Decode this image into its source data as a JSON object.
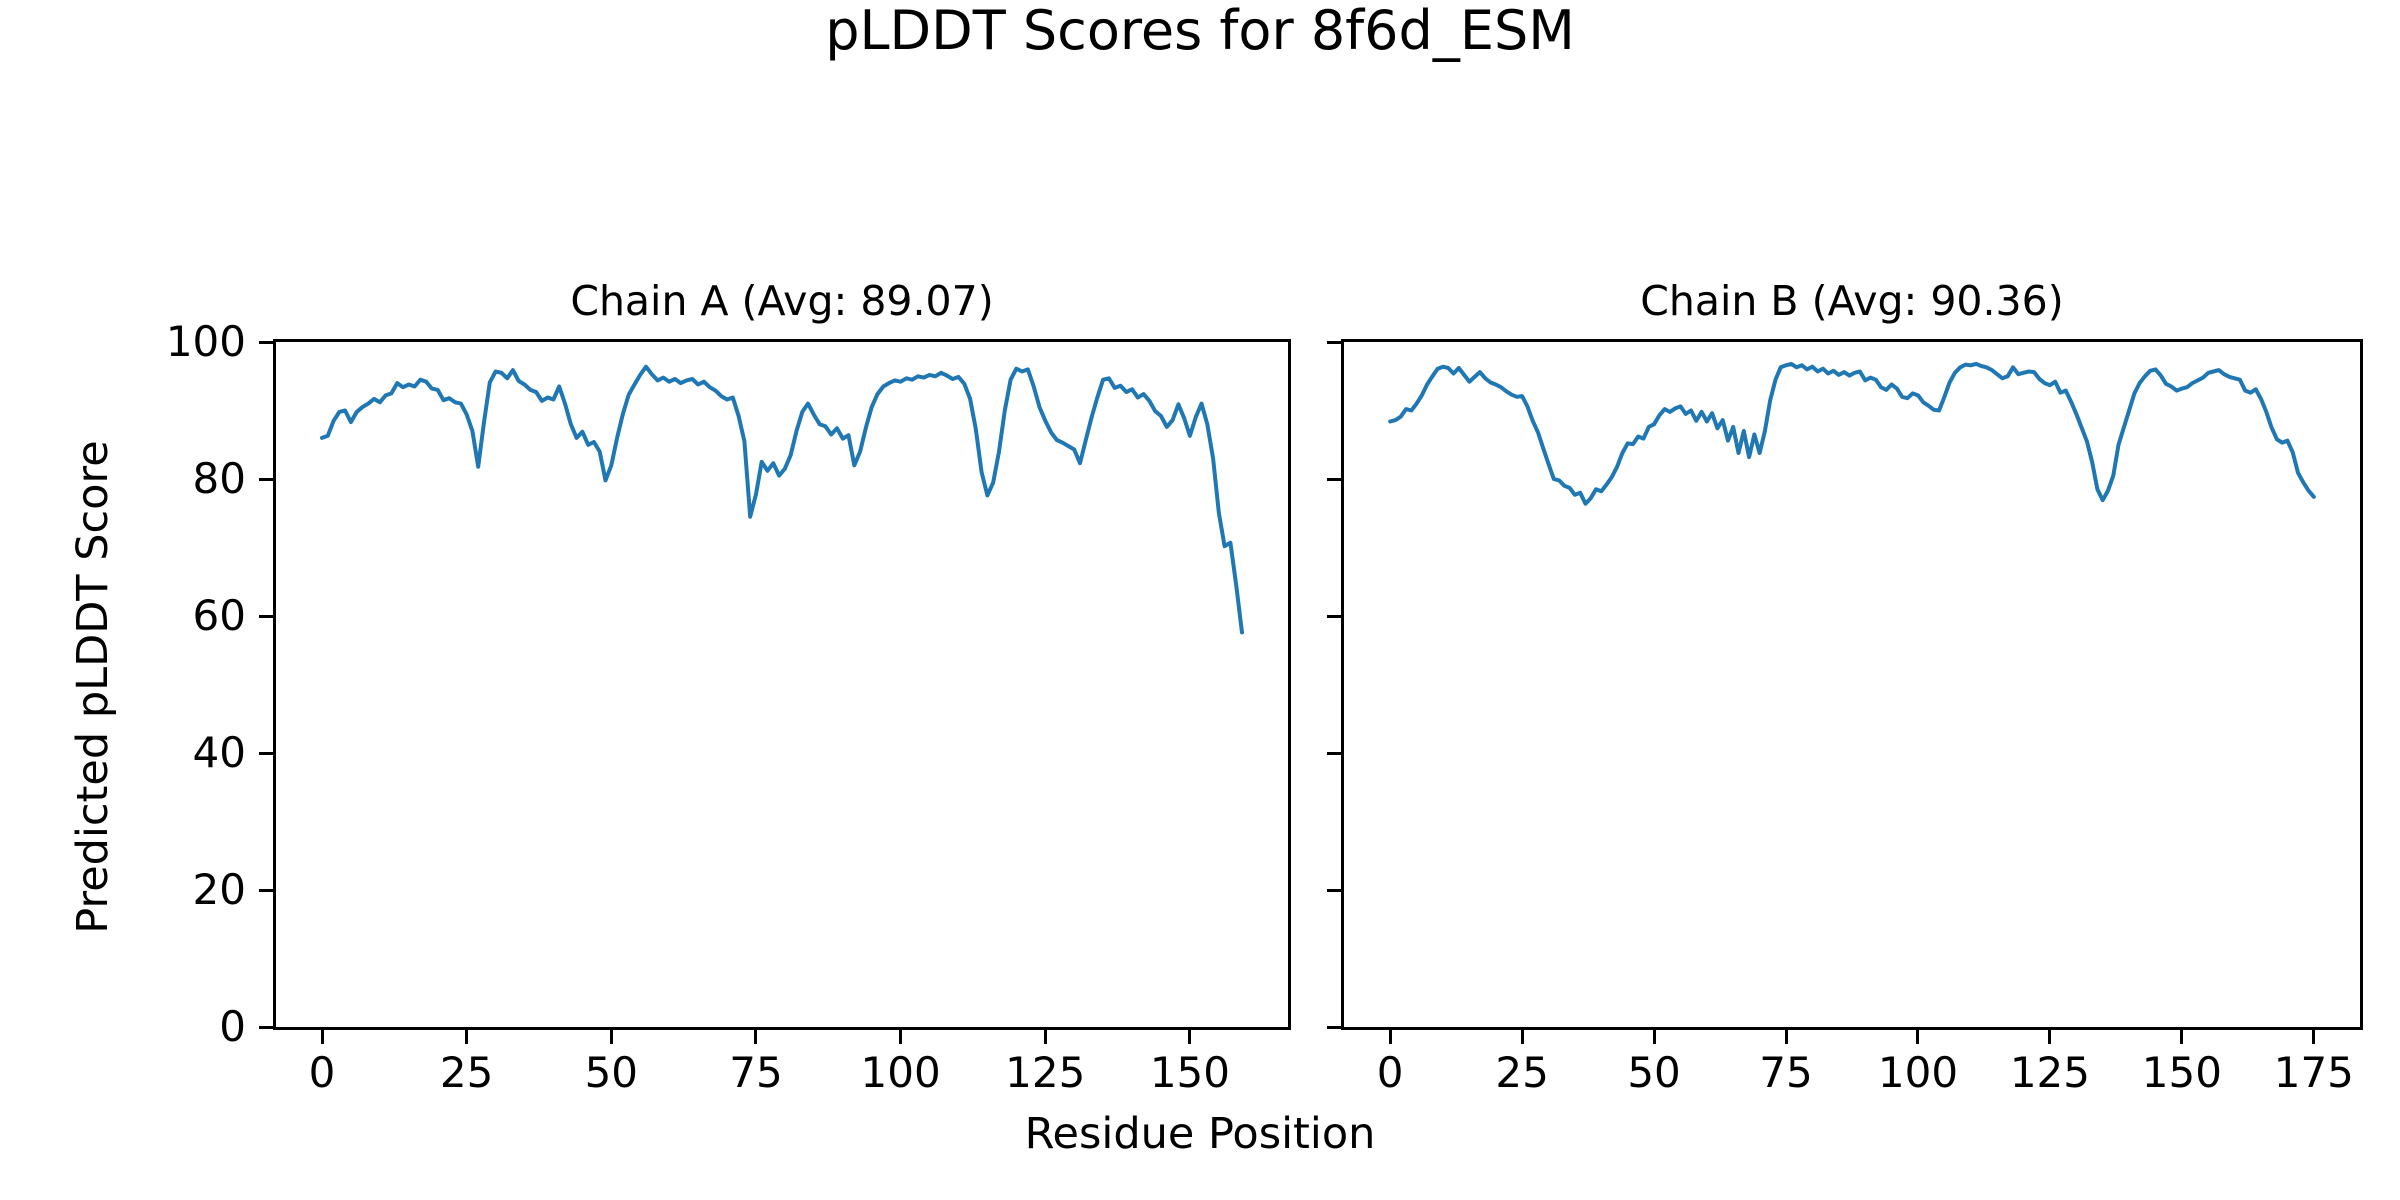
{
  "figure": {
    "title": "pLDDT Scores for 8f6d_ESM",
    "xlabel": "Residue Position",
    "ylabel": "Predicted pLDDT Score",
    "background": "#ffffff",
    "text_color": "#000000",
    "line_color": "#1f77b4"
  },
  "chart_data": [
    {
      "type": "line",
      "title": "Chain A (Avg: 89.07)",
      "series_name": "Chain A pLDDT",
      "avg_plddt": 89.07,
      "xlabel": "Residue Position",
      "ylabel": "Predicted pLDDT Score",
      "x_start": 0,
      "x_step": 1,
      "xlim": [
        -7.95,
        166.95
      ],
      "ylim": [
        0,
        100
      ],
      "xticks": [
        0,
        25,
        50,
        75,
        100,
        125,
        150
      ],
      "yticks": [
        0,
        20,
        40,
        60,
        80,
        100
      ],
      "y_tick_labels_visible": true,
      "grid": false,
      "legend": "none",
      "values": [
        86.0,
        86.3,
        88.5,
        89.8,
        90.0,
        88.3,
        89.8,
        90.5,
        91.0,
        91.7,
        91.2,
        92.2,
        92.5,
        94.0,
        93.4,
        93.8,
        93.5,
        94.5,
        94.2,
        93.2,
        93.0,
        91.5,
        91.8,
        91.2,
        91.0,
        89.4,
        87.0,
        81.8,
        88.3,
        94.1,
        95.7,
        95.5,
        94.7,
        95.9,
        94.3,
        93.8,
        93.0,
        92.7,
        91.4,
        91.9,
        91.6,
        93.5,
        91.0,
        88.0,
        86.0,
        86.9,
        85.0,
        85.4,
        84.0,
        79.8,
        82.0,
        86.0,
        89.5,
        92.3,
        93.8,
        95.2,
        96.4,
        95.3,
        94.4,
        94.8,
        94.2,
        94.6,
        94.0,
        94.4,
        94.6,
        93.8,
        94.2,
        93.4,
        92.9,
        92.1,
        91.6,
        91.9,
        89.2,
        85.5,
        74.5,
        77.8,
        82.5,
        81.2,
        82.3,
        80.5,
        81.5,
        83.5,
        87.0,
        89.8,
        91.0,
        89.4,
        88.0,
        87.7,
        86.5,
        87.4,
        85.9,
        86.4,
        82.0,
        84.0,
        87.5,
        90.5,
        92.4,
        93.5,
        94.0,
        94.4,
        94.2,
        94.7,
        94.5,
        95.0,
        94.8,
        95.2,
        95.0,
        95.5,
        95.1,
        94.6,
        94.9,
        93.9,
        91.7,
        87.3,
        81.0,
        77.6,
        79.5,
        84.0,
        90.0,
        94.5,
        96.1,
        95.7,
        96.0,
        93.5,
        90.5,
        88.5,
        86.8,
        85.7,
        85.3,
        84.8,
        84.3,
        82.3,
        85.7,
        89.0,
        91.9,
        94.5,
        94.7,
        93.3,
        93.6,
        92.7,
        93.1,
        91.9,
        92.4,
        91.4,
        89.9,
        89.2,
        87.6,
        88.6,
        90.9,
        88.9,
        86.3,
        89.0,
        91.0,
        88.0,
        83.0,
        75.0,
        70.2,
        70.7,
        64.5,
        57.6
      ]
    },
    {
      "type": "line",
      "title": "Chain B (Avg: 90.36)",
      "series_name": "Chain B pLDDT",
      "avg_plddt": 90.36,
      "xlabel": "Residue Position",
      "ylabel": "Predicted pLDDT Score",
      "x_start": 0,
      "x_step": 1,
      "xlim": [
        -8.75,
        183.75
      ],
      "ylim": [
        0,
        100
      ],
      "xticks": [
        0,
        25,
        50,
        75,
        100,
        125,
        150,
        175
      ],
      "yticks": [
        0,
        20,
        40,
        60,
        80,
        100
      ],
      "y_tick_labels_visible": false,
      "grid": false,
      "legend": "none",
      "values": [
        88.4,
        88.6,
        89.1,
        90.2,
        90.0,
        91.0,
        92.2,
        93.8,
        95.0,
        96.1,
        96.4,
        96.2,
        95.4,
        96.2,
        95.2,
        94.2,
        94.9,
        95.6,
        94.7,
        94.1,
        93.8,
        93.4,
        92.8,
        92.3,
        92.0,
        92.1,
        90.6,
        88.5,
        86.8,
        84.5,
        82.2,
        80.0,
        79.8,
        79.0,
        78.7,
        77.7,
        78.0,
        76.4,
        77.2,
        78.5,
        78.2,
        79.2,
        80.3,
        81.8,
        83.8,
        85.2,
        85.1,
        86.2,
        85.9,
        87.6,
        88.0,
        89.3,
        90.2,
        89.8,
        90.3,
        90.6,
        89.5,
        90.0,
        88.5,
        89.8,
        88.4,
        89.6,
        87.4,
        88.6,
        85.6,
        87.6,
        83.8,
        87.0,
        83.2,
        86.5,
        83.8,
        87.0,
        91.5,
        94.5,
        96.3,
        96.6,
        96.8,
        96.3,
        96.6,
        96.0,
        96.4,
        95.7,
        96.1,
        95.4,
        95.8,
        95.2,
        95.6,
        95.1,
        95.5,
        95.7,
        94.4,
        94.8,
        94.5,
        93.4,
        93.0,
        93.8,
        93.2,
        92.0,
        91.8,
        92.5,
        92.2,
        91.2,
        90.7,
        90.1,
        90.0,
        92.0,
        94.1,
        95.5,
        96.3,
        96.7,
        96.6,
        96.8,
        96.5,
        96.3,
        95.9,
        95.3,
        94.7,
        95.0,
        96.3,
        95.3,
        95.5,
        95.7,
        95.6,
        94.6,
        94.0,
        93.7,
        94.2,
        92.6,
        92.9,
        91.3,
        89.5,
        87.5,
        85.5,
        82.5,
        78.5,
        76.9,
        78.3,
        80.5,
        85.0,
        87.5,
        90.0,
        92.5,
        94.0,
        95.0,
        95.8,
        96.0,
        95.1,
        93.9,
        93.5,
        92.9,
        93.2,
        93.4,
        94.0,
        94.4,
        94.8,
        95.5,
        95.7,
        95.9,
        95.3,
        94.9,
        94.7,
        94.5,
        92.9,
        92.6,
        93.1,
        91.7,
        89.8,
        87.5,
        85.8,
        85.3,
        85.6,
        83.9,
        80.9,
        79.5,
        78.3,
        77.4
      ]
    }
  ]
}
